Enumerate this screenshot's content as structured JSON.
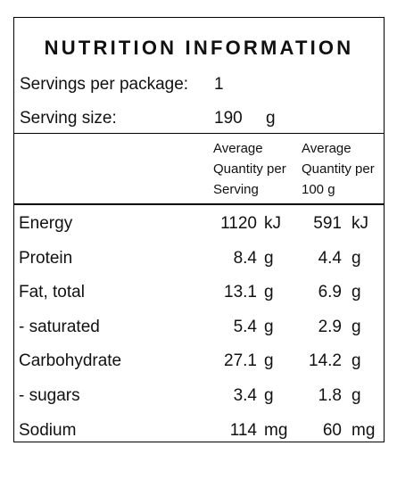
{
  "title": "NUTRITION INFORMATION",
  "servings_per_package": {
    "label": "Servings per package:",
    "value": "1"
  },
  "serving_size": {
    "label": "Serving size:",
    "value": "190",
    "unit": "g"
  },
  "column_headers": {
    "per_serving": [
      "Average",
      "Quantity per",
      "Serving"
    ],
    "per_100g": [
      "Average",
      "Quantity per",
      "100 g"
    ]
  },
  "rows": [
    {
      "name": "Energy",
      "serving": "1120",
      "serving_unit": "kJ",
      "per100": "591",
      "per100_unit": "kJ"
    },
    {
      "name": "Protein",
      "serving": "8.4",
      "serving_unit": "g",
      "per100": "4.4",
      "per100_unit": "g"
    },
    {
      "name": "Fat, total",
      "serving": "13.1",
      "serving_unit": "g",
      "per100": "6.9",
      "per100_unit": "g"
    },
    {
      "name": "- saturated",
      "serving": "5.4",
      "serving_unit": "g",
      "per100": "2.9",
      "per100_unit": "g"
    },
    {
      "name": "Carbohydrate",
      "serving": "27.1",
      "serving_unit": "g",
      "per100": "14.2",
      "per100_unit": "g"
    },
    {
      "name": "- sugars",
      "serving": "3.4",
      "serving_unit": "g",
      "per100": "1.8",
      "per100_unit": "g"
    },
    {
      "name": "Sodium",
      "serving": "114",
      "serving_unit": "mg",
      "per100": "60",
      "per100_unit": "mg"
    }
  ]
}
